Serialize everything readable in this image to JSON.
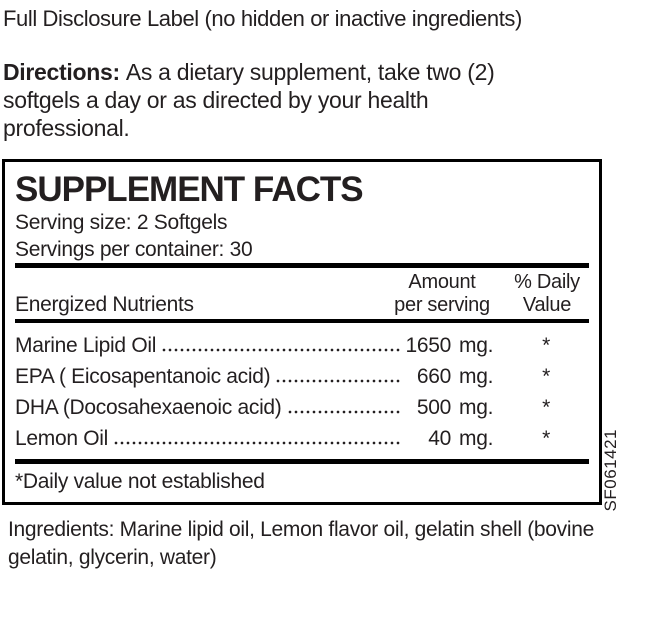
{
  "page": {
    "full_disclosure_label": "Full Disclosure Label (no hidden or inactive ingredients)"
  },
  "directions": {
    "label": "Directions:",
    "line1": "As a dietary supplement, take two (2)",
    "line2": "softgels a day or as directed by your health",
    "line3": "professional."
  },
  "supplement_facts": {
    "title": "SUPPLEMENT FACTS",
    "serving_size": "Serving size: 2 Softgels",
    "servings_per_container": "Servings per container: 30",
    "columns": {
      "nutrients": "Energized Nutrients",
      "amount_line1": "Amount",
      "amount_line2": "per serving",
      "daily_value_line1": "% Daily",
      "daily_value_line2": "Value"
    },
    "rows": [
      {
        "name": "Marine Lipid Oil",
        "amount": "1650",
        "unit": "mg.",
        "daily_value": "*"
      },
      {
        "name": "EPA ( Eicosapentanoic acid)",
        "amount": "660",
        "unit": "mg.",
        "daily_value": "*"
      },
      {
        "name": "DHA (Docosahexaenoic acid)",
        "amount": "500",
        "unit": "mg.",
        "daily_value": "*"
      },
      {
        "name": "Lemon Oil",
        "amount": "40",
        "unit": "mg.",
        "daily_value": "*"
      }
    ],
    "footnote": "*Daily value not established",
    "side_code": "SF061421"
  },
  "ingredients": {
    "line1": "Ingredients: Marine lipid oil, Lemon flavor oil, gelatin shell (bovine",
    "line2": "gelatin, glycerin, water)"
  },
  "colors": {
    "text": "#231f20",
    "rule": "#000000",
    "background": "#ffffff"
  }
}
